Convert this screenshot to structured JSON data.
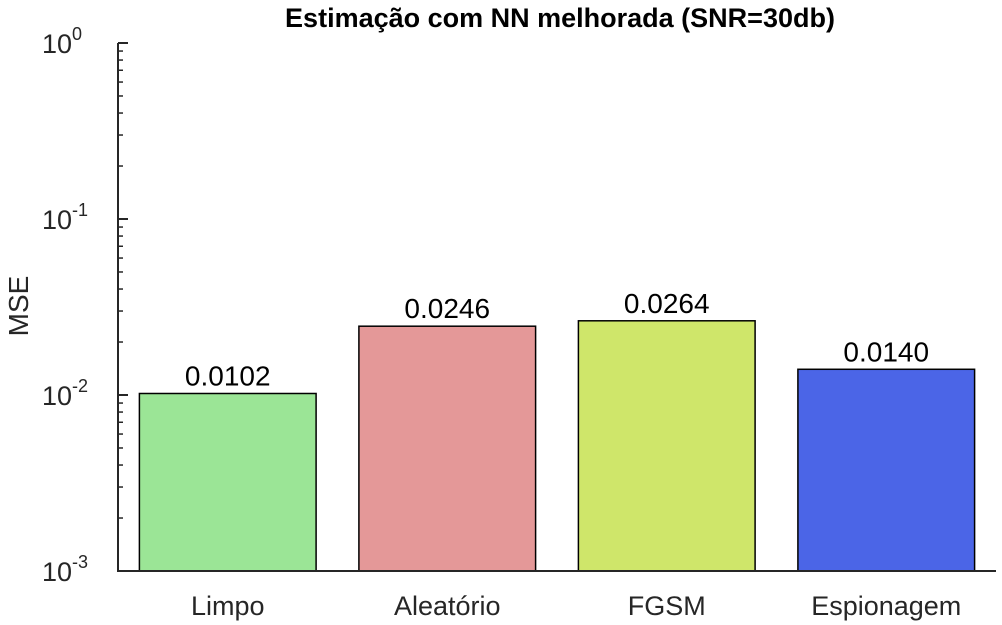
{
  "chart_data": {
    "type": "bar",
    "title": "Estimação com NN melhorada (SNR=30db)",
    "xlabel": "",
    "ylabel": "MSE",
    "yscale": "log",
    "ylim": [
      0.001,
      1
    ],
    "yticks": [
      {
        "value": 0.001,
        "base": "10",
        "exp": "-3"
      },
      {
        "value": 0.01,
        "base": "10",
        "exp": "-2"
      },
      {
        "value": 0.1,
        "base": "10",
        "exp": "-1"
      },
      {
        "value": 1,
        "base": "10",
        "exp": "0"
      }
    ],
    "categories": [
      "Limpo",
      "Aleatório",
      "FGSM",
      "Espionagem"
    ],
    "values": [
      0.0102,
      0.0246,
      0.0264,
      0.014
    ],
    "data_labels": [
      "0.0102",
      "0.0246",
      "0.0264",
      "0.0140"
    ],
    "colors": [
      "#9be596",
      "#e49898",
      "#cfe66a",
      "#4b65e7"
    ],
    "grid": false,
    "legend": "none"
  }
}
